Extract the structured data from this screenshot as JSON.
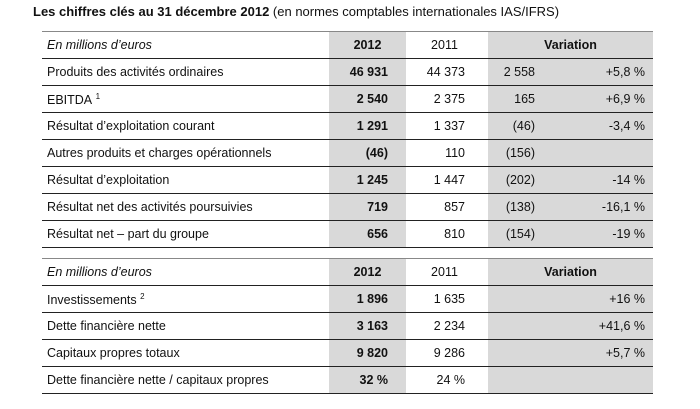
{
  "title": {
    "bold": "Les chiffres clés au 31 décembre 2012",
    "rest": " (en normes comptables internationales IAS/IFRS)"
  },
  "table1": {
    "header": {
      "unit": "En millions d’euros",
      "y2012": "2012",
      "y2011": "2011",
      "variation": "Variation"
    },
    "rows": [
      {
        "label": "Produits des activités ordinaires",
        "sup": "",
        "y2012": "46 931",
        "y2011": "44 373",
        "var_abs": "2 558",
        "var_pct": "+5,8 %"
      },
      {
        "label": "EBITDA",
        "sup": "1",
        "y2012": "2 540",
        "y2011": "2 375",
        "var_abs": "165",
        "var_pct": "+6,9 %"
      },
      {
        "label": "Résultat d’exploitation courant",
        "sup": "",
        "y2012": "1 291",
        "y2011": "1 337",
        "var_abs": "(46)",
        "var_pct": "-3,4 %"
      },
      {
        "label": "Autres produits et charges opérationnels",
        "sup": "",
        "y2012": "(46)",
        "y2011": "110",
        "var_abs": "(156)",
        "var_pct": ""
      },
      {
        "label": "Résultat d’exploitation",
        "sup": "",
        "y2012": "1 245",
        "y2011": "1 447",
        "var_abs": "(202)",
        "var_pct": "-14 %"
      },
      {
        "label": "Résultat net des activités poursuivies",
        "sup": "",
        "y2012": "719",
        "y2011": "857",
        "var_abs": "(138)",
        "var_pct": "-16,1 %"
      },
      {
        "label": "Résultat net – part du groupe",
        "sup": "",
        "y2012": "656",
        "y2011": "810",
        "var_abs": "(154)",
        "var_pct": "-19 %"
      }
    ]
  },
  "table2": {
    "header": {
      "unit": "En millions d’euros",
      "y2012": "2012",
      "y2011": "2011",
      "variation": "Variation"
    },
    "rows": [
      {
        "label": "Investissements",
        "sup": "2",
        "y2012": "1 896",
        "y2011": "1 635",
        "var_abs": "",
        "var_pct": "+16 %"
      },
      {
        "label": "Dette financière nette",
        "sup": "",
        "y2012": "3 163",
        "y2011": "2 234",
        "var_abs": "",
        "var_pct": "+41,6 %"
      },
      {
        "label": "Capitaux propres totaux",
        "sup": "",
        "y2012": "9 820",
        "y2011": "9 286",
        "var_abs": "",
        "var_pct": "+5,7 %"
      },
      {
        "label": "Dette financière nette / capitaux propres",
        "sup": "",
        "y2012": "32 %",
        "y2011": "24 %",
        "var_abs": "",
        "var_pct": ""
      }
    ]
  }
}
